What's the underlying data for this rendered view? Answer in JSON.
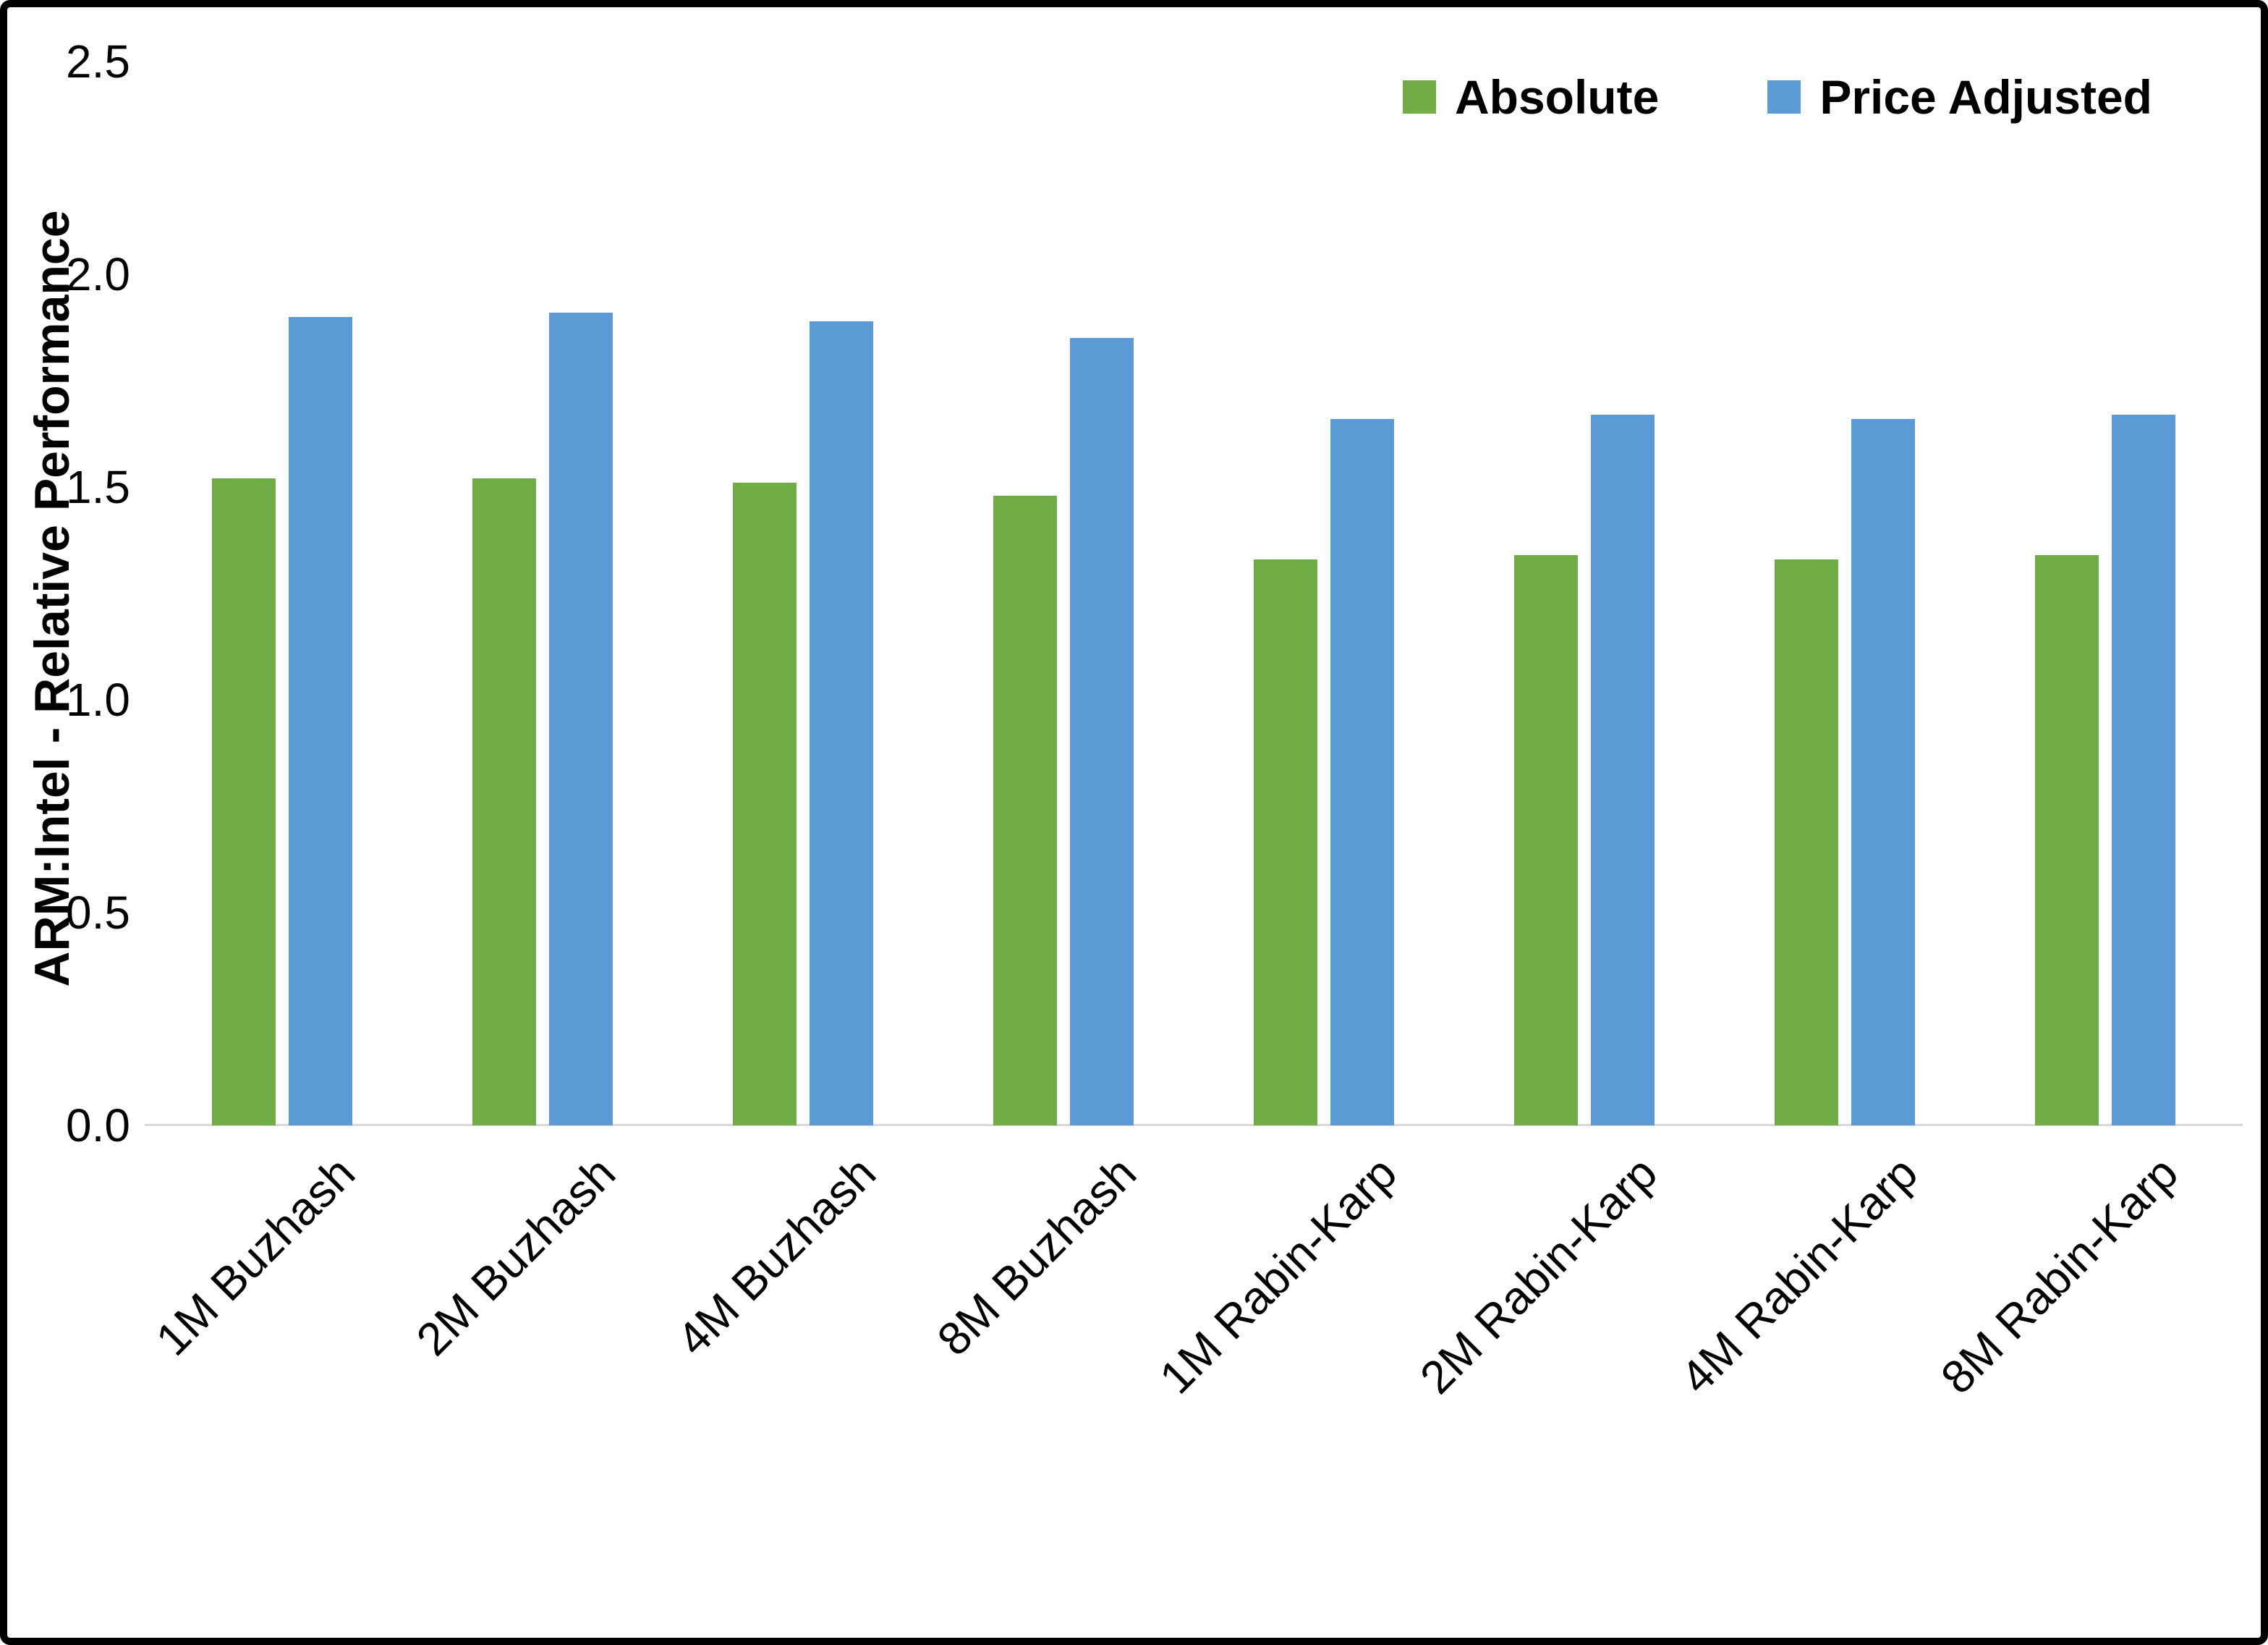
{
  "chart_data": {
    "type": "bar",
    "title": "",
    "xlabel": "",
    "ylabel": "ARM:Intel - Relative Performance",
    "ylim": [
      0,
      2.5
    ],
    "ytick_step": 0.5,
    "ytick_labels": [
      "0.0",
      "0.5",
      "1.0",
      "1.5",
      "2.0",
      "2.5"
    ],
    "grid": false,
    "legend_position": "top-right",
    "categories": [
      "1M Buzhash",
      "2M Buzhash",
      "4M Buzhash",
      "8M Buzhash",
      "1M Rabin-Karp",
      "2M Rabin-Karp",
      "4M Rabin-Karp",
      "8M Rabin-Karp"
    ],
    "series": [
      {
        "name": "Absolute",
        "color": "#70AD47",
        "values": [
          1.52,
          1.52,
          1.51,
          1.48,
          1.33,
          1.34,
          1.33,
          1.34
        ]
      },
      {
        "name": "Price Adjusted",
        "color": "#5B9BD5",
        "values": [
          1.9,
          1.91,
          1.89,
          1.85,
          1.66,
          1.67,
          1.66,
          1.67
        ]
      }
    ]
  },
  "colors": {
    "background": "#ffffff",
    "frame_border": "#000000",
    "axis_line": "#d9d9d9",
    "text": "#000000"
  }
}
